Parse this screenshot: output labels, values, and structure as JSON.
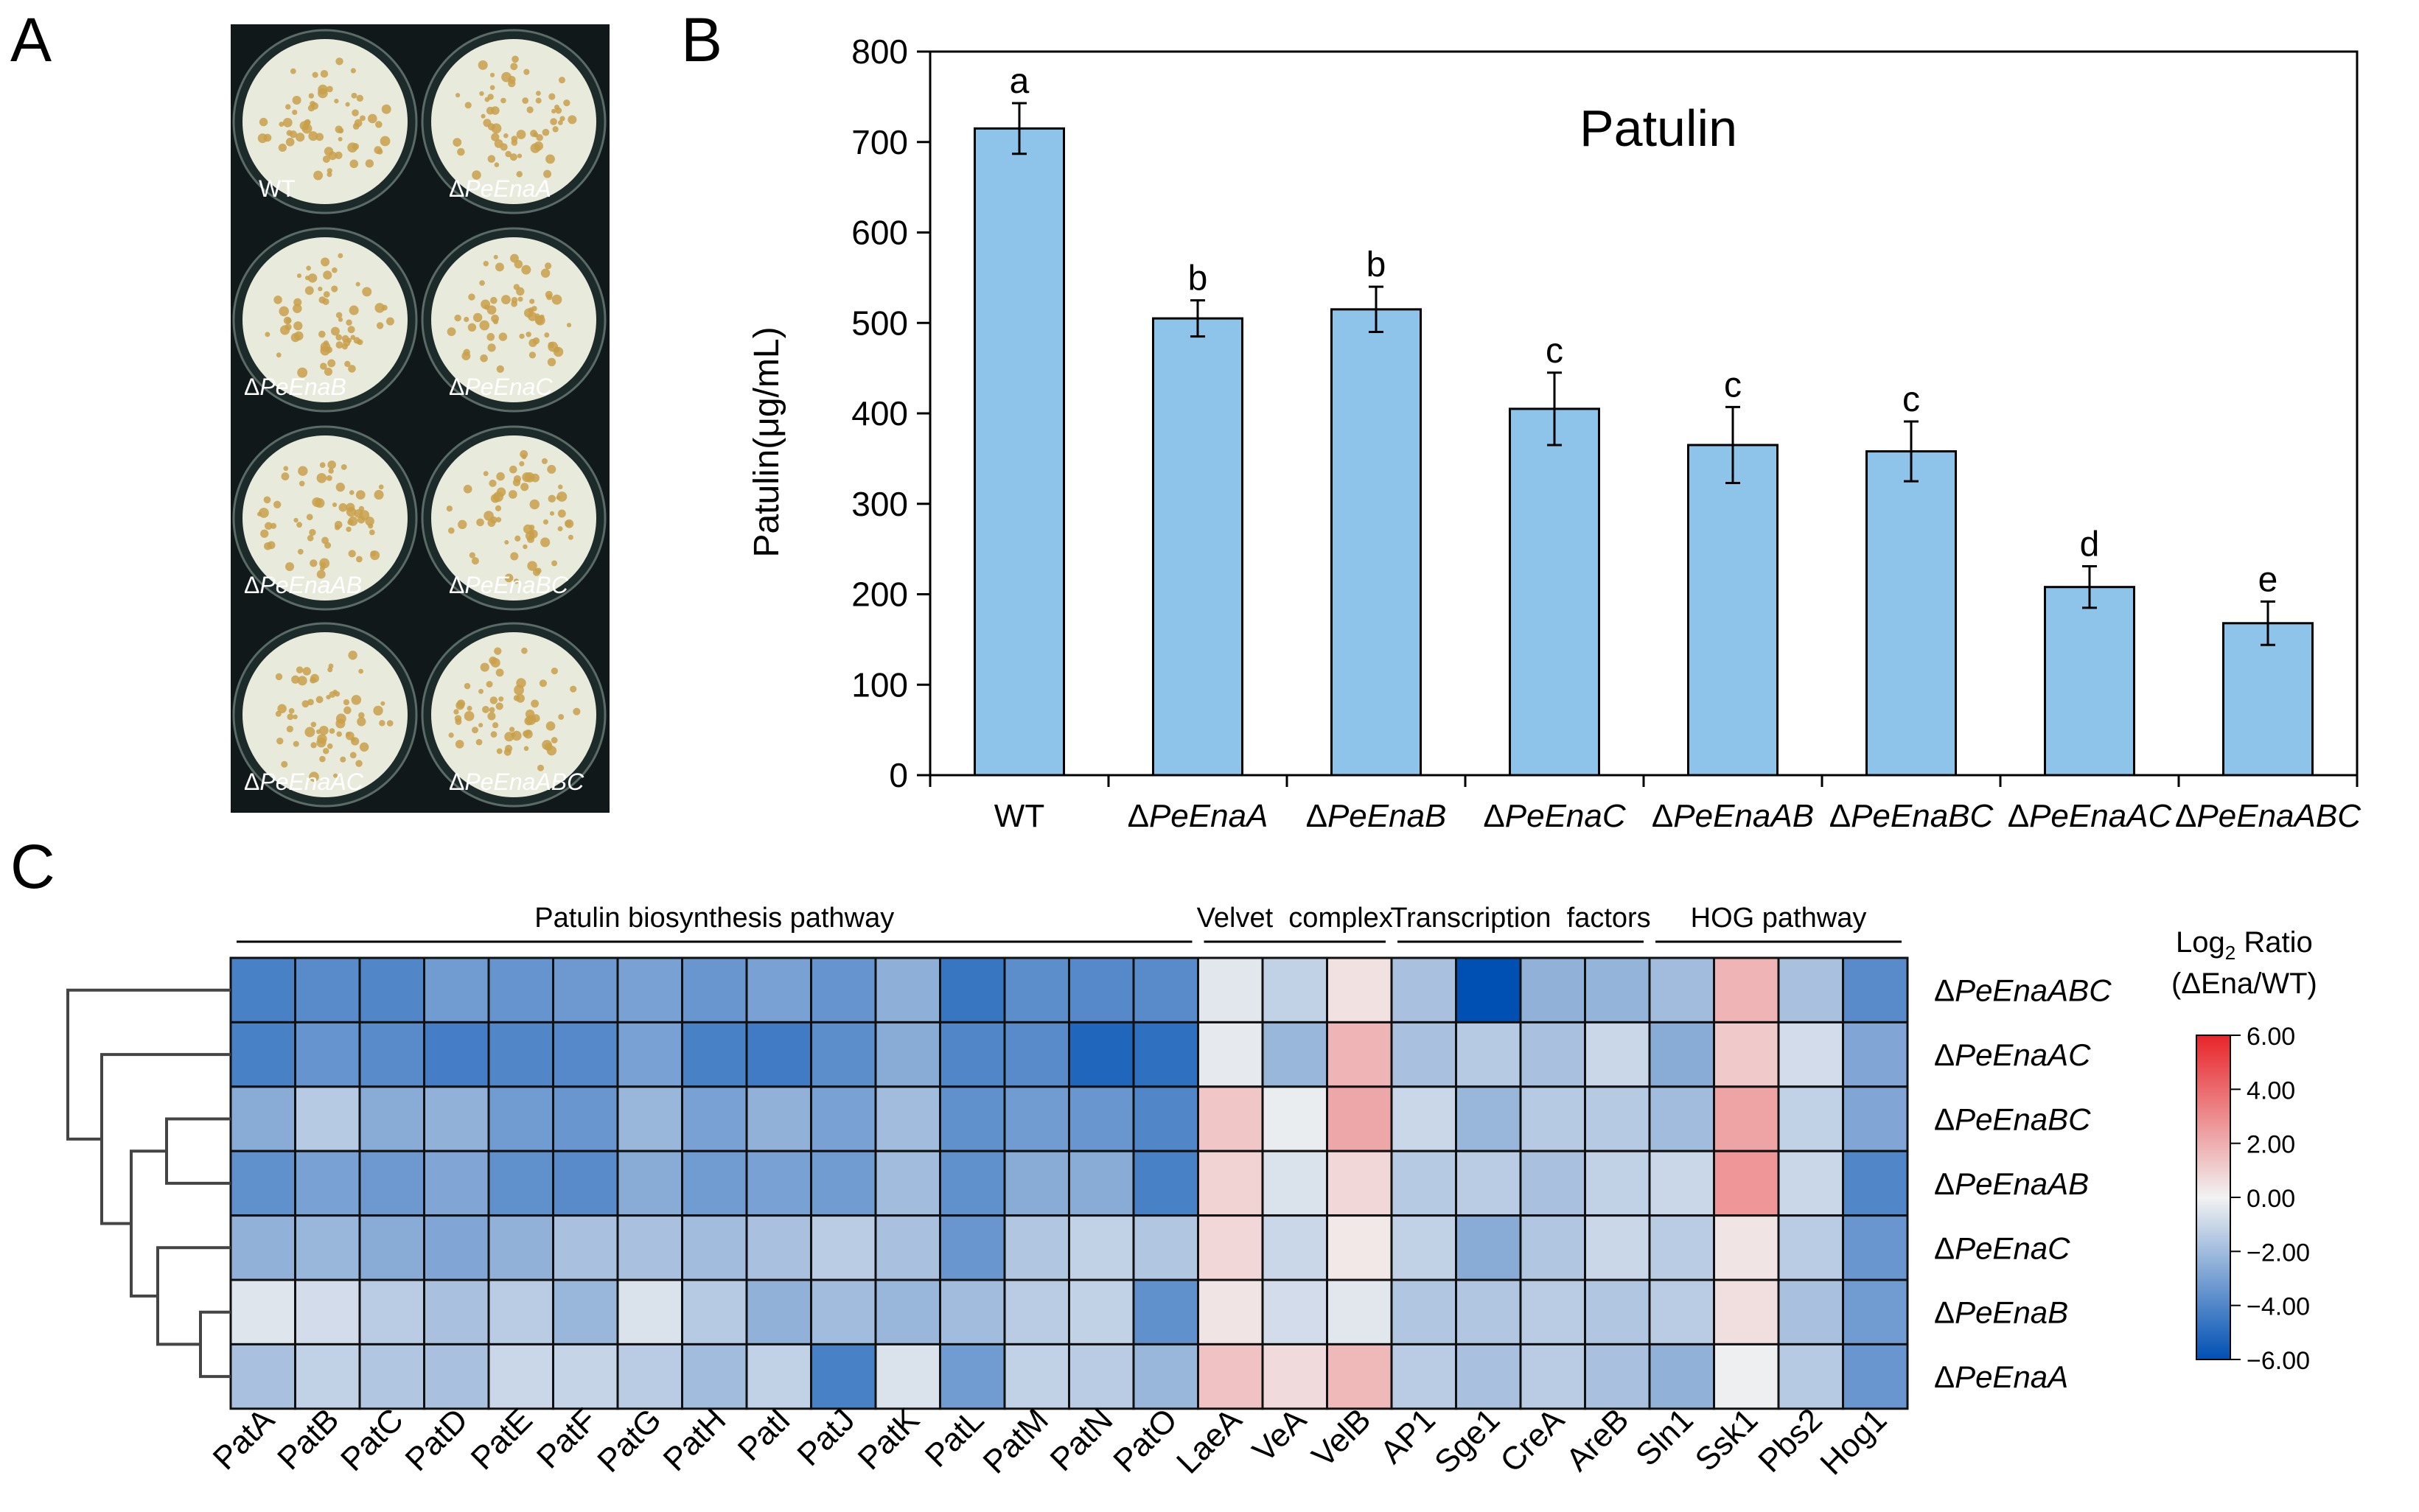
{
  "panels": {
    "a_letter": "A",
    "b_letter": "B",
    "c_letter": "C"
  },
  "plate": {
    "wells": [
      {
        "label": "WT",
        "italic": false
      },
      {
        "label": "ΔPeEnaA",
        "italic": true
      },
      {
        "label": "ΔPeEnaB",
        "italic": true
      },
      {
        "label": "ΔPeEnaC",
        "italic": true
      },
      {
        "label": "ΔPeEnaAB",
        "italic": true
      },
      {
        "label": "ΔPeEnaBC",
        "italic": true
      },
      {
        "label": "ΔPeEnaAC",
        "italic": true
      },
      {
        "label": "ΔPeEnaABC",
        "italic": true
      }
    ],
    "background_color": "#10181a",
    "colony_color": "#e8eadc",
    "spore_color": "#c9a04a"
  },
  "chart_data": [
    {
      "type": "bar",
      "title": "Patulin",
      "xlabel": "",
      "ylabel": "Patulin(μg/mL)",
      "ylim": [
        0,
        800
      ],
      "yticks": [
        0,
        100,
        200,
        300,
        400,
        500,
        600,
        700,
        800
      ],
      "categories": [
        "WT",
        "ΔPeEnaA",
        "ΔPeEnaB",
        "ΔPeEnaC",
        "ΔPeEnaAB",
        "ΔPeEnaBC",
        "ΔPeEnaAC",
        "ΔPeEnaABC"
      ],
      "values": [
        715,
        505,
        515,
        405,
        365,
        358,
        208,
        168
      ],
      "errors": [
        28,
        20,
        25,
        40,
        42,
        33,
        23,
        24
      ],
      "significance_letters": [
        "a",
        "b",
        "b",
        "c",
        "c",
        "c",
        "d",
        "e"
      ],
      "bar_color": "#8ec4ea",
      "grid": false,
      "legend": "none"
    },
    {
      "type": "heatmap",
      "title": "",
      "colorbar_title_line1": "Log",
      "colorbar_title_sub": "2",
      "colorbar_title_rest": " Ratio",
      "colorbar_title_line2": "(ΔEna/WT)",
      "colorbar_ticks": [
        "6.00",
        "4.00",
        "2.00",
        "0.00",
        "−2.00",
        "−4.00",
        "−6.00"
      ],
      "colorbar_range": [
        -6,
        6
      ],
      "colors": {
        "min": "#0050b4",
        "mid": "#f2f2f2",
        "max": "#e8252a"
      },
      "groups": [
        {
          "label": "Patulin biosynthesis pathway",
          "start": 0,
          "end": 14
        },
        {
          "label": "Velvet  complex",
          "start": 15,
          "end": 17
        },
        {
          "label": "Transcription  factors",
          "start": 18,
          "end": 21
        },
        {
          "label": "HOG pathway",
          "start": 22,
          "end": 25
        }
      ],
      "columns": [
        "PatA",
        "PatB",
        "PatC",
        "PatD",
        "PatE",
        "PatF",
        "PatG",
        "PatH",
        "PatI",
        "PatJ",
        "PatK",
        "PatL",
        "PatM",
        "PatN",
        "PatO",
        "LaeA",
        "VeA",
        "VelB",
        "AP1",
        "Sge1",
        "CreA",
        "AreB",
        "Sln1",
        "Ssk1",
        "Pbs2",
        "Hog1"
      ],
      "rows": [
        "ΔPeEnaABC",
        "ΔPeEnaAC",
        "ΔPeEnaBC",
        "ΔPeEnaAB",
        "ΔPeEnaC",
        "ΔPeEnaB",
        "ΔPeEnaA"
      ],
      "values": [
        [
          -4.2,
          -3.8,
          -4.0,
          -3.2,
          -3.5,
          -3.3,
          -3.0,
          -3.4,
          -3.0,
          -3.5,
          -2.5,
          -4.6,
          -3.7,
          -3.9,
          -3.8,
          -0.4,
          -1.2,
          0.5,
          -1.8,
          -6.0,
          -2.4,
          -2.3,
          -2.0,
          1.8,
          -1.8,
          -3.8
        ],
        [
          -4.2,
          -3.5,
          -3.8,
          -4.3,
          -4.0,
          -3.9,
          -3.0,
          -4.2,
          -4.4,
          -3.7,
          -2.6,
          -4.0,
          -3.8,
          -5.2,
          -4.8,
          -0.3,
          -2.2,
          1.8,
          -1.8,
          -1.5,
          -1.8,
          -1.0,
          -2.6,
          1.2,
          -0.8,
          -2.8
        ],
        [
          -2.6,
          -1.5,
          -2.6,
          -2.4,
          -3.2,
          -3.4,
          -2.2,
          -3.0,
          -2.4,
          -3.0,
          -2.0,
          -3.6,
          -3.2,
          -3.4,
          -4.0,
          1.3,
          -0.2,
          2.2,
          -1.0,
          -2.2,
          -1.5,
          -1.5,
          -2.0,
          2.3,
          -1.2,
          -2.8
        ],
        [
          -3.6,
          -3.0,
          -3.3,
          -2.8,
          -3.6,
          -3.8,
          -2.6,
          -3.2,
          -3.0,
          -3.2,
          -2.0,
          -3.6,
          -2.6,
          -2.6,
          -4.2,
          0.9,
          -0.6,
          0.8,
          -1.5,
          -1.4,
          -1.8,
          -1.2,
          -1.0,
          2.7,
          -1.0,
          -4.0
        ],
        [
          -2.4,
          -2.2,
          -2.6,
          -2.8,
          -2.4,
          -1.8,
          -1.8,
          -2.0,
          -1.8,
          -1.4,
          -1.8,
          -3.4,
          -1.6,
          -1.2,
          -1.6,
          0.8,
          -1.0,
          0.3,
          -1.2,
          -2.6,
          -1.6,
          -1.0,
          -1.4,
          0.4,
          -1.4,
          -3.4
        ],
        [
          -0.5,
          -0.8,
          -1.4,
          -1.8,
          -1.4,
          -2.2,
          -0.6,
          -1.5,
          -2.4,
          -2.0,
          -2.2,
          -2.0,
          -1.4,
          -1.2,
          -3.6,
          0.4,
          -0.8,
          -0.4,
          -1.6,
          -1.6,
          -1.4,
          -1.6,
          -1.4,
          0.6,
          -1.8,
          -3.2
        ],
        [
          -1.8,
          -1.2,
          -1.6,
          -1.8,
          -1.0,
          -1.1,
          -1.4,
          -2.0,
          -1.2,
          -4.2,
          -0.6,
          -3.2,
          -1.2,
          -1.4,
          -2.2,
          1.4,
          0.7,
          1.7,
          -1.4,
          -1.8,
          -1.4,
          -1.8,
          -2.4,
          -0.1,
          -1.5,
          -3.4
        ]
      ]
    }
  ]
}
